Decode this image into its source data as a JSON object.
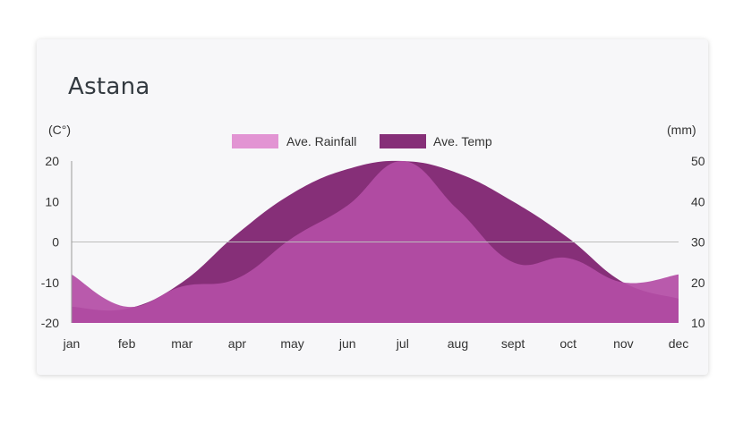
{
  "chart_data": {
    "type": "area",
    "title": "Astana",
    "categories": [
      "jan",
      "feb",
      "mar",
      "apr",
      "may",
      "jun",
      "jul",
      "aug",
      "sept",
      "oct",
      "nov",
      "dec"
    ],
    "left_axis": {
      "label": "(C°)",
      "ticks": [
        20,
        10,
        0,
        -10,
        -20
      ],
      "ylim": [
        -20,
        20
      ]
    },
    "right_axis": {
      "label": "(mm)",
      "ticks": [
        50,
        40,
        30,
        20,
        10
      ],
      "ylim": [
        10,
        50
      ]
    },
    "series": [
      {
        "name": "Ave. Rainfall",
        "axis": "right",
        "color": "#b44ea6",
        "legend_color": "#e294d3",
        "values": [
          22,
          14,
          19,
          21,
          31,
          39,
          50,
          38,
          25,
          26,
          20,
          22
        ]
      },
      {
        "name": "Ave. Temp",
        "axis": "left",
        "color": "#862f78",
        "values": [
          -16,
          -16.5,
          -10,
          2,
          12,
          18,
          20,
          17,
          10,
          1,
          -10,
          -14
        ]
      }
    ],
    "legend_position": "top-center",
    "grid": false,
    "baseline": 0
  }
}
